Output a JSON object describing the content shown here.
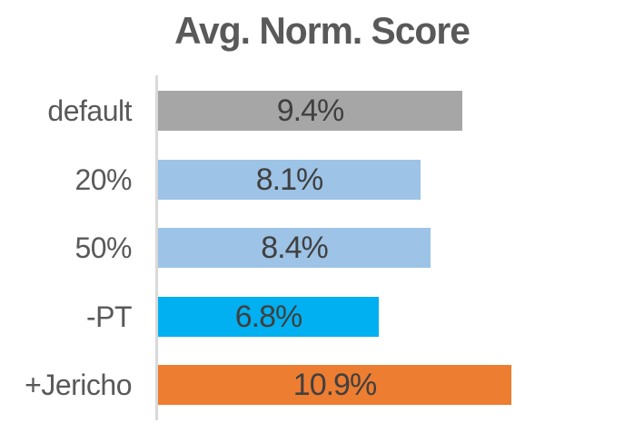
{
  "chart_data": {
    "type": "bar",
    "orientation": "horizontal",
    "title": "Avg. Norm. Score",
    "categories": [
      "default",
      "20%",
      "50%",
      "-PT",
      "+Jericho"
    ],
    "values": [
      9.4,
      8.1,
      8.4,
      6.8,
      10.9
    ],
    "value_labels": [
      "9.4%",
      "8.1%",
      "8.4%",
      "6.8%",
      "10.9%"
    ],
    "value_label_position": "inside-center",
    "xlabel": "",
    "ylabel": "",
    "grid": false,
    "legend": false,
    "axis_ticks_visible": false,
    "colors": {
      "bars": [
        "#a6a6a6",
        "#9dc3e6",
        "#9dc3e6",
        "#00b0f0",
        "#ed7d31"
      ],
      "title_text": "#595959",
      "category_text": "#595959",
      "value_text": "#404040",
      "axis_line": "#d9d9d9",
      "background": "#ffffff"
    }
  }
}
